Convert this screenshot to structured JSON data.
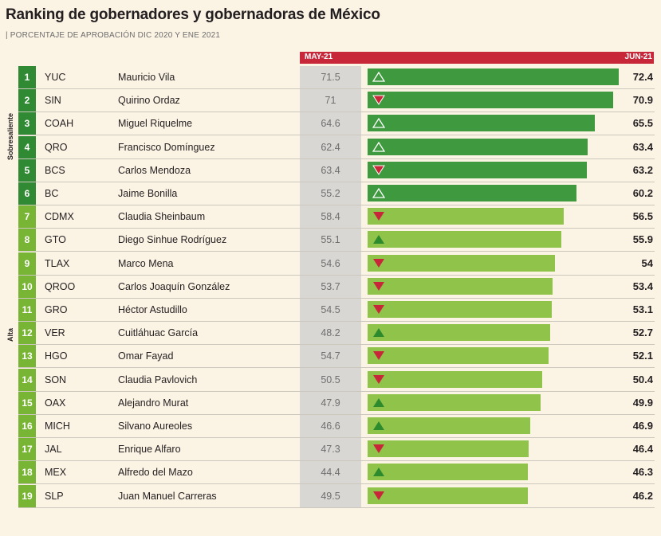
{
  "title": "Ranking de gobernadores y gobernadoras de México",
  "subtitle": "| PORCENTAJE DE APROBACIÓN DIC 2020 Y ENE 2021",
  "categories_labels": {
    "top": "Sobresaliente",
    "rest": "Alta"
  },
  "colors": {
    "dark_green": "#3f9a3f",
    "light_green": "#8fc34a",
    "rank_dark": "#2f8a33",
    "rank_light": "#79b534",
    "up_outline": "#ffffff",
    "down_red": "#c8273a",
    "up_green": "#2d8a2d"
  },
  "chart_data": {
    "type": "bar",
    "title": "Ranking de gobernadores y gobernadoras de México",
    "xlabel": "",
    "ylabel": "",
    "series_labels": {
      "previous": "MAY-21",
      "current": "JUN-21"
    },
    "xlim": [
      0,
      72.4
    ],
    "rows": [
      {
        "rank": "1",
        "state": "YUC",
        "name": "Mauricio Vila",
        "may": "71.5",
        "jun": "72.4",
        "value": 72.4,
        "trend": "up",
        "tier": "Sobresaliente"
      },
      {
        "rank": "2",
        "state": "SIN",
        "name": "Quirino Ordaz",
        "may": "71",
        "jun": "70.9",
        "value": 70.9,
        "trend": "down",
        "tier": "Sobresaliente"
      },
      {
        "rank": "3",
        "state": "COAH",
        "name": "Miguel Riquelme",
        "may": "64.6",
        "jun": "65.5",
        "value": 65.5,
        "trend": "up",
        "tier": "Sobresaliente"
      },
      {
        "rank": "4",
        "state": "QRO",
        "name": "Francisco Domínguez",
        "may": "62.4",
        "jun": "63.4",
        "value": 63.4,
        "trend": "up",
        "tier": "Sobresaliente"
      },
      {
        "rank": "5",
        "state": "BCS",
        "name": "Carlos Mendoza",
        "may": "63.4",
        "jun": "63.2",
        "value": 63.2,
        "trend": "down",
        "tier": "Sobresaliente"
      },
      {
        "rank": "6",
        "state": "BC",
        "name": "Jaime Bonilla",
        "may": "55.2",
        "jun": "60.2",
        "value": 60.2,
        "trend": "up",
        "tier": "Sobresaliente"
      },
      {
        "rank": "7",
        "state": "CDMX",
        "name": "Claudia Sheinbaum",
        "may": "58.4",
        "jun": "56.5",
        "value": 56.5,
        "trend": "down",
        "tier": "Alta"
      },
      {
        "rank": "8",
        "state": "GTO",
        "name": "Diego Sinhue Rodríguez",
        "may": "55.1",
        "jun": "55.9",
        "value": 55.9,
        "trend": "up",
        "tier": "Alta"
      },
      {
        "rank": "9",
        "state": "TLAX",
        "name": "Marco Mena",
        "may": "54.6",
        "jun": "54",
        "value": 54,
        "trend": "down",
        "tier": "Alta"
      },
      {
        "rank": "10",
        "state": "QROO",
        "name": "Carlos Joaquín González",
        "may": "53.7",
        "jun": "53.4",
        "value": 53.4,
        "trend": "down",
        "tier": "Alta"
      },
      {
        "rank": "11",
        "state": "GRO",
        "name": "Héctor Astudillo",
        "may": "54.5",
        "jun": "53.1",
        "value": 53.1,
        "trend": "down",
        "tier": "Alta"
      },
      {
        "rank": "12",
        "state": "VER",
        "name": "Cuitláhuac García",
        "may": "48.2",
        "jun": "52.7",
        "value": 52.7,
        "trend": "up",
        "tier": "Alta"
      },
      {
        "rank": "13",
        "state": "HGO",
        "name": "Omar Fayad",
        "may": "54.7",
        "jun": "52.1",
        "value": 52.1,
        "trend": "down",
        "tier": "Alta"
      },
      {
        "rank": "14",
        "state": "SON",
        "name": "Claudia Pavlovich",
        "may": "50.5",
        "jun": "50.4",
        "value": 50.4,
        "trend": "down",
        "tier": "Alta"
      },
      {
        "rank": "15",
        "state": "OAX",
        "name": "Alejandro Murat",
        "may": "47.9",
        "jun": "49.9",
        "value": 49.9,
        "trend": "up",
        "tier": "Alta"
      },
      {
        "rank": "16",
        "state": "MICH",
        "name": "Silvano Aureoles",
        "may": "46.6",
        "jun": "46.9",
        "value": 46.9,
        "trend": "up",
        "tier": "Alta"
      },
      {
        "rank": "17",
        "state": "JAL",
        "name": "Enrique Alfaro",
        "may": "47.3",
        "jun": "46.4",
        "value": 46.4,
        "trend": "down",
        "tier": "Alta"
      },
      {
        "rank": "18",
        "state": "MEX",
        "name": "Alfredo del Mazo",
        "may": "44.4",
        "jun": "46.3",
        "value": 46.3,
        "trend": "up",
        "tier": "Alta"
      },
      {
        "rank": "19",
        "state": "SLP",
        "name": "Juan Manuel Carreras",
        "may": "49.5",
        "jun": "46.2",
        "value": 46.2,
        "trend": "down",
        "tier": "Alta"
      }
    ]
  }
}
